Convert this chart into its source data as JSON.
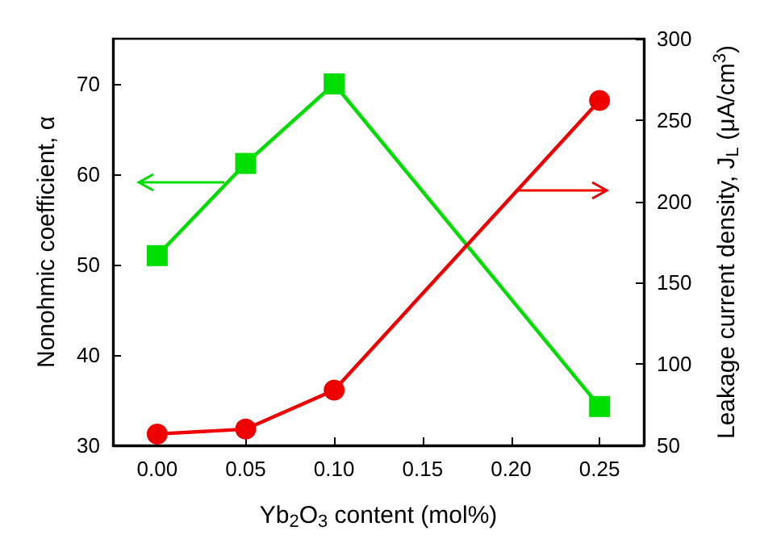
{
  "chart_data": {
    "type": "line",
    "xlabel": "Yb$_{2}$O$_{3}$ content (mol%)",
    "ylabel": "Nonohmic coefficient, α",
    "y2label": "Leakage current density, J$_{L}$ (μA/cm$^{3}$)",
    "x": [
      0.0,
      0.05,
      0.1,
      0.25
    ],
    "series": [
      {
        "color": "#00dd00",
        "values": [
          51,
          61.2,
          70,
          34.3
        ],
        "marker": "square"
      },
      {
        "color": "#ee0000",
        "values": [
          57,
          60,
          84,
          262
        ],
        "marker": "circle",
        "axis": "y2"
      }
    ],
    "xlim": [
      -0.025,
      0.275
    ],
    "xticks": [
      {
        "value": 0,
        "label": "0.00"
      },
      0.05,
      {
        "value": 0.1,
        "label": "0.10"
      },
      0.15,
      {
        "value": 0.2,
        "label": "0.20"
      },
      0.25
    ],
    "ylim": [
      30,
      75
    ],
    "yticks": [
      30,
      40,
      50,
      60,
      70
    ],
    "y2lim": [
      50,
      300
    ],
    "y2ticks": [
      50,
      100,
      150,
      200,
      250,
      300
    ],
    "grid": false,
    "line_style": "solid"
  }
}
